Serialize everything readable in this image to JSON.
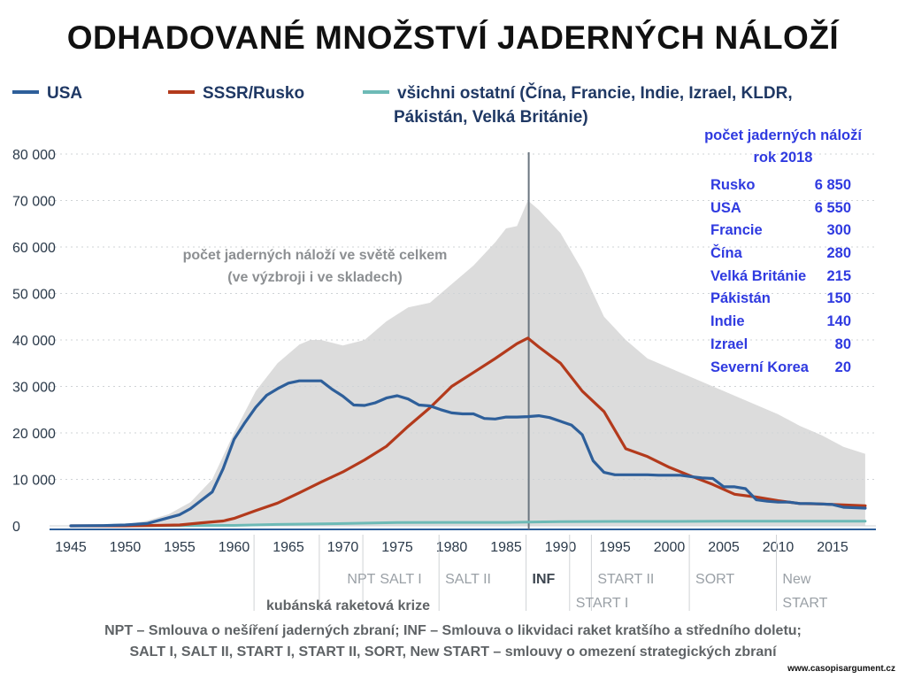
{
  "title": "ODHADOVANÉ  MNOŽSTVÍ  JADERNÝCH  NÁLOŽÍ",
  "colors": {
    "usa": "#2e5f9a",
    "ussr": "#b33a1c",
    "others": "#6dbab6",
    "total": "#dcdcdc",
    "table": "#2f3ae0"
  },
  "legend": {
    "usa": "USA",
    "ussr": "SSSR/Rusko",
    "others_line1": "všichni ostatní (Čína, Francie, Indie, Izrael, KLDR,",
    "others_line2": "Pákistán, Velká Británie)"
  },
  "table": {
    "heading1": "počet jaderných náloží",
    "heading2": "rok 2018",
    "rows": [
      {
        "name": "Rusko",
        "value": "6 850"
      },
      {
        "name": "USA",
        "value": "6 550"
      },
      {
        "name": "Francie",
        "value": "300"
      },
      {
        "name": "Čína",
        "value": "280"
      },
      {
        "name": "Velká Británie",
        "value": "215"
      },
      {
        "name": "Pákistán",
        "value": "150"
      },
      {
        "name": "Indie",
        "value": "140"
      },
      {
        "name": "Izrael",
        "value": "80"
      },
      {
        "name": "Severní Korea",
        "value": "20"
      }
    ]
  },
  "total_label_1": "počet jaderných náloží ve světě celkem",
  "total_label_2": "(ve výzbroji i ve skladech)",
  "cuban_label": "kubánská raketová krize",
  "footnote_line1": "NPT – Smlouva o nešíření jaderných zbraní; INF – Smlouva o likvidaci raket kratšího a středního doletu;",
  "footnote_line2": "SALT I, SALT II, START I, START II, SORT, New START – smlouvy o omezení strategických zbraní",
  "source": "www.casopisargument.cz",
  "chart_data": {
    "type": "area",
    "ylim": [
      0,
      80000
    ],
    "xlim": [
      1945,
      2019
    ],
    "yticks": [
      0,
      10000,
      20000,
      30000,
      40000,
      50000,
      60000,
      70000,
      80000
    ],
    "ytick_labels": [
      "0",
      "10 000",
      "20 000",
      "30 000",
      "40 000",
      "50 000",
      "60 000",
      "70 000",
      "80 000"
    ],
    "xticks": [
      1945,
      1950,
      1955,
      1960,
      1965,
      1970,
      1975,
      1980,
      1985,
      1990,
      1995,
      2000,
      2005,
      2010,
      2015
    ],
    "grid": true,
    "series": [
      {
        "name": "USA",
        "key": "usa",
        "x": [
          1945,
          1948,
          1950,
          1952,
          1955,
          1956,
          1957,
          1958,
          1959,
          1960,
          1961,
          1962,
          1963,
          1964,
          1965,
          1966,
          1967,
          1968,
          1969,
          1970,
          1971,
          1972,
          1973,
          1974,
          1975,
          1976,
          1977,
          1978,
          1979,
          1980,
          1981,
          1982,
          1983,
          1984,
          1985,
          1986,
          1987,
          1988,
          1989,
          1990,
          1991,
          1992,
          1993,
          1994,
          1995,
          1996,
          1997,
          1998,
          1999,
          2000,
          2001,
          2002,
          2003,
          2004,
          2005,
          2006,
          2007,
          2008,
          2009,
          2010,
          2011,
          2012,
          2013,
          2014,
          2015,
          2016,
          2017,
          2018
        ],
        "y": [
          6,
          50,
          200,
          500,
          2400,
          3700,
          5500,
          7300,
          12300,
          18600,
          22200,
          25500,
          28100,
          29500,
          30700,
          31200,
          31200,
          31200,
          29400,
          27900,
          26000,
          25900,
          26500,
          27500,
          28000,
          27300,
          26000,
          25800,
          25000,
          24300,
          24100,
          24100,
          23100,
          23000,
          23400,
          23400,
          23500,
          23700,
          23300,
          22500,
          21700,
          19600,
          14000,
          11500,
          11000,
          11000,
          11000,
          11000,
          10900,
          10900,
          10900,
          10600,
          10300,
          10200,
          8400,
          8400,
          8000,
          5600,
          5300,
          5100,
          5100,
          4800,
          4800,
          4700,
          4600,
          4000,
          3900,
          3800
        ]
      },
      {
        "name": "SSSR/Rusko",
        "key": "ussr",
        "x": [
          1945,
          1948,
          1949,
          1950,
          1952,
          1955,
          1957,
          1959,
          1960,
          1962,
          1964,
          1966,
          1968,
          1970,
          1972,
          1974,
          1976,
          1978,
          1980,
          1982,
          1984,
          1986,
          1987,
          1988,
          1990,
          1992,
          1994,
          1996,
          1998,
          2000,
          2002,
          2004,
          2006,
          2008,
          2010,
          2012,
          2014,
          2016,
          2018
        ],
        "y": [
          0,
          0,
          1,
          5,
          50,
          200,
          650,
          1050,
          1600,
          3300,
          4900,
          7100,
          9400,
          11600,
          14200,
          17100,
          21400,
          25400,
          30000,
          33000,
          36000,
          39200,
          40400,
          38500,
          35000,
          29000,
          24600,
          16600,
          14900,
          12600,
          10700,
          8900,
          6800,
          6200,
          5400,
          4800,
          4700,
          4500,
          4300
        ]
      },
      {
        "name": "všichni ostatní",
        "key": "others",
        "x": [
          1945,
          1952,
          1956,
          1960,
          1964,
          1970,
          1975,
          1980,
          1985,
          1987,
          1990,
          1995,
          2000,
          2005,
          2010,
          2015,
          2018
        ],
        "y": [
          0,
          20,
          50,
          100,
          300,
          500,
          700,
          750,
          750,
          800,
          900,
          950,
          950,
          1000,
          1000,
          1000,
          1000
        ]
      },
      {
        "name": "celkem",
        "key": "total",
        "x": [
          1945,
          1950,
          1952,
          1954,
          1956,
          1958,
          1960,
          1962,
          1964,
          1966,
          1967,
          1968,
          1970,
          1972,
          1974,
          1976,
          1978,
          1980,
          1982,
          1984,
          1985,
          1986,
          1987,
          1988,
          1990,
          1992,
          1994,
          1996,
          1998,
          2000,
          2002,
          2004,
          2006,
          2008,
          2010,
          2012,
          2014,
          2016,
          2018
        ],
        "y": [
          0,
          300,
          1100,
          2500,
          5100,
          10000,
          20000,
          29000,
          35000,
          39000,
          40000,
          40000,
          38800,
          40000,
          44000,
          47000,
          48000,
          52000,
          56000,
          61000,
          64000,
          64500,
          70000,
          68000,
          63000,
          55000,
          45000,
          40000,
          36000,
          34000,
          32000,
          30000,
          28000,
          26000,
          24000,
          21500,
          19500,
          17000,
          15500
        ]
      }
    ],
    "vline": {
      "x": 1987
    },
    "treaties": [
      {
        "label": "NPT",
        "x": 1970.4,
        "row": 1
      },
      {
        "label": "SALT I",
        "x": 1973.4,
        "row": 1
      },
      {
        "label": "SALT II",
        "x": 1979.4,
        "row": 1
      },
      {
        "label": "INF",
        "x": 1987.4,
        "row": 1
      },
      {
        "label": "START II",
        "x": 1993.4,
        "row": 1
      },
      {
        "label": "SORT",
        "x": 2002.4,
        "row": 1
      },
      {
        "label": "START I",
        "x": 1991.4,
        "row": 2
      },
      {
        "label": "New",
        "x": 2010.4,
        "row": 1
      },
      {
        "label": "START",
        "x": 2010.4,
        "row": 2
      }
    ],
    "treaty_marks": [
      1962,
      1968,
      1972,
      1979,
      1987,
      1991,
      1993,
      2002,
      2010
    ]
  }
}
